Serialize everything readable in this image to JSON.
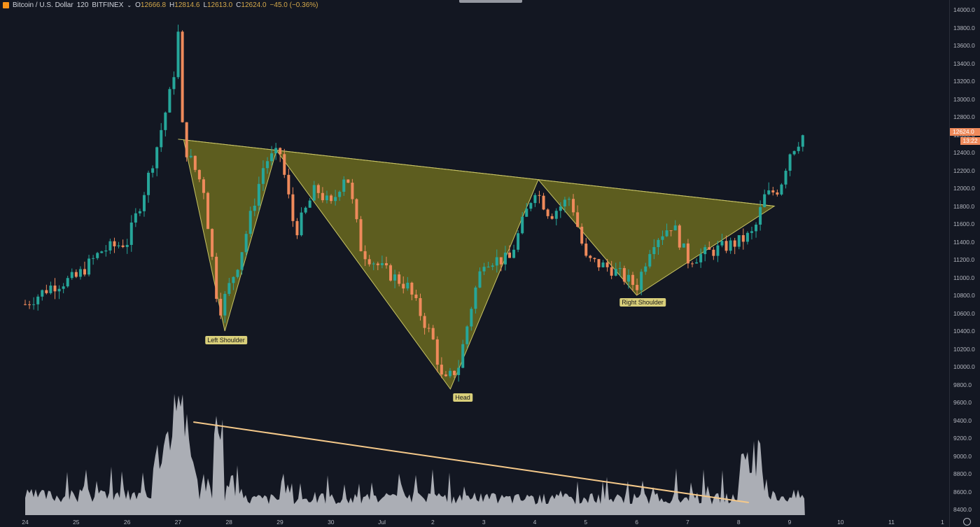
{
  "header": {
    "symbol": "Bitcoin / U.S. Dollar",
    "interval": "120",
    "exchange": "BITFINEX",
    "open_label": "O",
    "open": "12666.8",
    "high_label": "H",
    "high": "12814.6",
    "low_label": "L",
    "low": "12613.0",
    "close_label": "C",
    "close": "12624.0",
    "change": "−45.0 (−0.36%)",
    "logo_icon": "bitcoin-logo-icon"
  },
  "price_axis": {
    "ticks": [
      "14000.0",
      "13800.0",
      "13600.0",
      "13400.0",
      "13200.0",
      "13000.0",
      "12800.0",
      "12600.0",
      "12400.0",
      "12200.0",
      "12000.0",
      "11800.0",
      "11600.0",
      "11400.0",
      "11200.0",
      "11000.0",
      "10800.0",
      "10600.0",
      "10400.0",
      "10200.0",
      "10000.0",
      "9800.0",
      "9600.0",
      "9400.0",
      "9200.0",
      "9000.0",
      "8800.0",
      "8600.0",
      "8400.0"
    ],
    "last_price": "12624.0",
    "countdown": "13:22",
    "settings_icon": "gear-icon"
  },
  "time_axis": {
    "ticks": [
      "24",
      "25",
      "26",
      "27",
      "28",
      "29",
      "30",
      "Jul",
      "2",
      "3",
      "4",
      "5",
      "6",
      "7",
      "8",
      "9",
      "10",
      "11",
      "1"
    ]
  },
  "colors": {
    "background": "#131722",
    "up": "#26a69a",
    "down": "#ef8a5b",
    "pattern_fill": "#6b6a1e",
    "pattern_line": "#c8c364",
    "neckline": "#c8c364",
    "volume": "#c7c9cf",
    "volume_trend": "#f5c98a",
    "label_bg": "#d9cf7a"
  },
  "pattern": {
    "name_labels": {
      "left_shoulder": "Left Shoulder",
      "head": "Head",
      "right_shoulder": "Right Shoulder"
    }
  },
  "chart_data": {
    "type": "candlestick",
    "title": "Bitcoin / U.S. Dollar 120 BITFINEX",
    "x_categories": [
      "24",
      "25",
      "26",
      "27",
      "28",
      "29",
      "30",
      "Jul",
      "2",
      "3",
      "4",
      "5",
      "6",
      "7",
      "8",
      "9",
      "10",
      "11"
    ],
    "ylim": [
      8400,
      14000
    ],
    "price_path": [
      {
        "t": "24",
        "v": 10700
      },
      {
        "t": "24.5",
        "v": 10900
      },
      {
        "t": "25",
        "v": 11000
      },
      {
        "t": "25.5",
        "v": 11300
      },
      {
        "t": "26",
        "v": 11400
      },
      {
        "t": "26.3",
        "v": 11900
      },
      {
        "t": "26.6",
        "v": 12500
      },
      {
        "t": "26.9",
        "v": 13200
      },
      {
        "t": "27",
        "v": 13750
      },
      {
        "t": "27.1",
        "v": 12500
      },
      {
        "t": "27.5",
        "v": 12000
      },
      {
        "t": "27.8",
        "v": 10600
      },
      {
        "t": "28.2",
        "v": 11200
      },
      {
        "t": "28.7",
        "v": 12300
      },
      {
        "t": "29",
        "v": 12400
      },
      {
        "t": "29.3",
        "v": 11500
      },
      {
        "t": "29.7",
        "v": 12000
      },
      {
        "t": "30",
        "v": 11800
      },
      {
        "t": "30.3",
        "v": 12200
      },
      {
        "t": "30.6",
        "v": 11300
      },
      {
        "t": "Jul",
        "v": 11100
      },
      {
        "t": "Jul.5",
        "v": 10900
      },
      {
        "t": "2",
        "v": 10300
      },
      {
        "t": "2.2",
        "v": 9800
      },
      {
        "t": "2.5",
        "v": 10000
      },
      {
        "t": "2.8",
        "v": 10800
      },
      {
        "t": "3",
        "v": 11200
      },
      {
        "t": "3.5",
        "v": 11200
      },
      {
        "t": "4",
        "v": 12000
      },
      {
        "t": "4.3",
        "v": 11700
      },
      {
        "t": "4.7",
        "v": 11900
      },
      {
        "t": "5",
        "v": 11200
      },
      {
        "t": "5.5",
        "v": 11100
      },
      {
        "t": "6",
        "v": 10900
      },
      {
        "t": "6.3",
        "v": 11400
      },
      {
        "t": "6.7",
        "v": 11600
      },
      {
        "t": "7",
        "v": 11200
      },
      {
        "t": "7.5",
        "v": 11300
      },
      {
        "t": "8",
        "v": 11400
      },
      {
        "t": "8.3",
        "v": 11500
      },
      {
        "t": "8.5",
        "v": 11900
      },
      {
        "t": "8.8",
        "v": 12000
      },
      {
        "t": "9",
        "v": 12400
      },
      {
        "t": "9.3",
        "v": 12624
      }
    ],
    "pattern_points": {
      "left_shoulder": {
        "t": "28",
        "v": 10400
      },
      "head": {
        "t": "2",
        "v": 9750
      },
      "right_shoulder": {
        "t": "6",
        "v": 10800
      }
    },
    "neckline": [
      {
        "t": "27",
        "v": 12550
      },
      {
        "t": "8.7",
        "v": 11800
      }
    ],
    "volume_trend": [
      {
        "t": "27.3",
        "v": "high"
      },
      {
        "t": "8.2",
        "v": "low"
      }
    ]
  }
}
